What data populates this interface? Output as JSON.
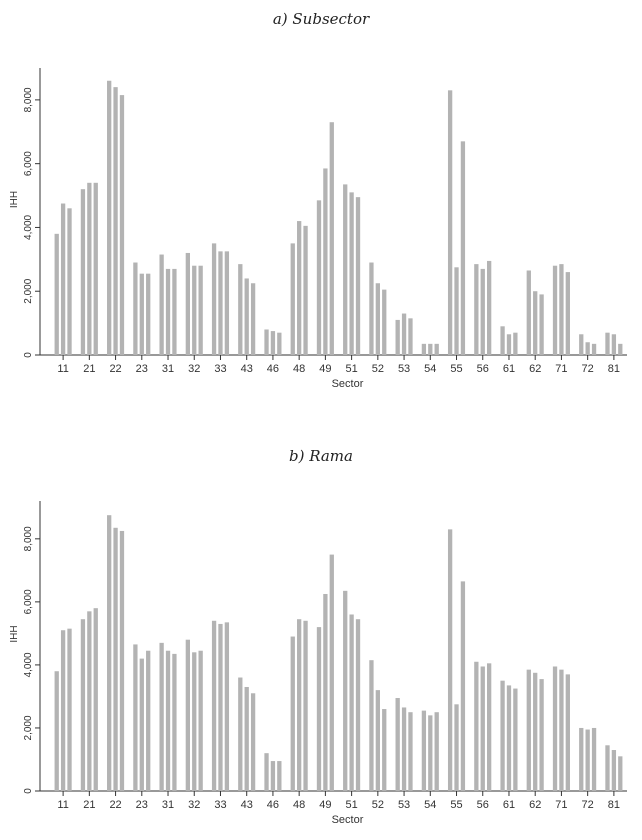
{
  "chart_data": [
    {
      "type": "bar",
      "title": "a) Subsector",
      "xlabel": "Sector",
      "ylabel": "IHH",
      "ylim": [
        0,
        9000
      ],
      "yticks": [
        "0",
        "2,000",
        "4,000",
        "6,000",
        "8,000"
      ],
      "ytick_values": [
        0,
        2000,
        4000,
        6000,
        8000
      ],
      "grid": false,
      "bar_color": "#b3b3b3",
      "categories": [
        "11",
        "21",
        "22",
        "23",
        "31",
        "32",
        "33",
        "43",
        "46",
        "48",
        "49",
        "51",
        "52",
        "53",
        "54",
        "55",
        "56",
        "61",
        "62",
        "71",
        "72",
        "81"
      ],
      "groups": [
        [
          3800,
          4750,
          4600
        ],
        [
          5200,
          5400,
          5400
        ],
        [
          8600,
          8400,
          8150
        ],
        [
          2900,
          2550,
          2550
        ],
        [
          3150,
          2700,
          2700
        ],
        [
          3200,
          2800,
          2800
        ],
        [
          3500,
          3250,
          3250
        ],
        [
          2850,
          2400,
          2250
        ],
        [
          800,
          750,
          700
        ],
        [
          3500,
          4200,
          4050
        ],
        [
          4850,
          5850,
          7300
        ],
        [
          5350,
          5100,
          4950
        ],
        [
          2900,
          2250,
          2050
        ],
        [
          1100,
          1300,
          1150
        ],
        [
          350,
          350,
          350
        ],
        [
          8300,
          2750,
          6700
        ],
        [
          2850,
          2700,
          2950
        ],
        [
          900,
          650,
          700
        ],
        [
          2650,
          2000,
          1900
        ],
        [
          2800,
          2850,
          2600
        ],
        [
          650,
          400,
          350
        ],
        [
          700,
          650,
          350
        ]
      ]
    },
    {
      "type": "bar",
      "title": "b) Rama",
      "xlabel": "Sector",
      "ylabel": "IHH",
      "ylim": [
        0,
        9200
      ],
      "yticks": [
        "0",
        "2,000",
        "4,000",
        "6,000",
        "8,000"
      ],
      "ytick_values": [
        0,
        2000,
        4000,
        6000,
        8000
      ],
      "grid": false,
      "bar_color": "#b3b3b3",
      "categories": [
        "11",
        "21",
        "22",
        "23",
        "31",
        "32",
        "33",
        "43",
        "46",
        "48",
        "49",
        "51",
        "52",
        "53",
        "54",
        "55",
        "56",
        "61",
        "62",
        "71",
        "72",
        "81"
      ],
      "groups": [
        [
          3800,
          5100,
          5150
        ],
        [
          5450,
          5700,
          5800
        ],
        [
          8750,
          8350,
          8250
        ],
        [
          4650,
          4200,
          4450
        ],
        [
          4700,
          4450,
          4350
        ],
        [
          4800,
          4400,
          4450
        ],
        [
          5400,
          5300,
          5350
        ],
        [
          3600,
          3300,
          3100
        ],
        [
          1200,
          950,
          950
        ],
        [
          4900,
          5450,
          5400
        ],
        [
          5200,
          6250,
          7500
        ],
        [
          6350,
          5600,
          5450
        ],
        [
          4150,
          3200,
          2600
        ],
        [
          2950,
          2650,
          2500
        ],
        [
          2550,
          2400,
          2500
        ],
        [
          8300,
          2750,
          6650
        ],
        [
          4100,
          3950,
          4050
        ],
        [
          3500,
          3350,
          3250
        ],
        [
          3850,
          3750,
          3550
        ],
        [
          3950,
          3850,
          3700
        ],
        [
          2000,
          1950,
          2000
        ],
        [
          1450,
          1300,
          1100
        ]
      ]
    }
  ]
}
